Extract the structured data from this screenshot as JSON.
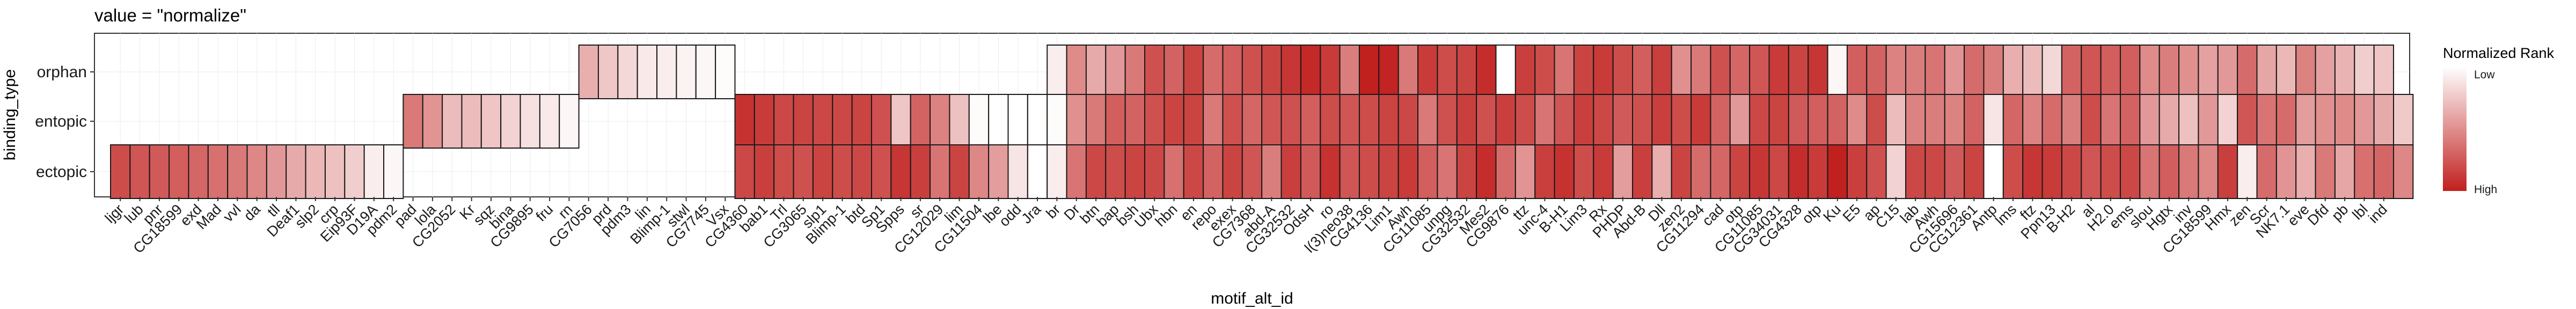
{
  "chart_data": {
    "type": "heatmap",
    "title": "value = \"normalize\"",
    "xlabel": "motif_alt_id",
    "ylabel": "binding_type",
    "rows": [
      "orphan",
      "entopic",
      "ectopic"
    ],
    "columns": [
      "ljgr",
      "lub",
      "pnr",
      "CG18599",
      "exd",
      "Mad",
      "vvl",
      "da",
      "tll",
      "Deaf1",
      "slp2",
      "crp",
      "Eip93F",
      "D19A",
      "pdm2",
      "pad",
      "lola",
      "CG2052",
      "Kr",
      "sqz",
      "bina",
      "CG9895",
      "fru",
      "rn",
      "CG7056",
      "prd",
      "pdm3",
      "lin",
      "Blimp-1",
      "stwl",
      "CG7745",
      "Vsx",
      "CG4360",
      "bab1",
      "Trl",
      "CG3065",
      "slp1",
      "Blimp-1",
      "btd",
      "Sp1",
      "Spps",
      "sr",
      "CG12029",
      "lim",
      "CG11504",
      "lbe",
      "odd",
      "Jra",
      "br",
      "Dr",
      "btn",
      "bap",
      "bsh",
      "Ubx",
      "hbn",
      "en",
      "repo",
      "exex",
      "CG7368",
      "abd-A",
      "CG32532",
      "OdsH",
      "ro",
      "l(3)neo38",
      "CG4136",
      "Lim1",
      "Awh",
      "CG11085",
      "unpg",
      "CG32532",
      "Mes2",
      "CG9876",
      "ttz",
      "unc-4",
      "B-H1",
      "Lim3",
      "Rx",
      "PHDP",
      "Abd-B",
      "Dll",
      "zen2",
      "CG11294",
      "cad",
      "otp",
      "CG11085",
      "CG34031",
      "CG4328",
      "otp",
      "Ku",
      "E5",
      "ap",
      "C15",
      "lab",
      "Awh",
      "CG15696",
      "CG12361",
      "Antp",
      "lms",
      "ftz",
      "Ppn13",
      "B-H2",
      "al",
      "H2.0",
      "ems",
      "slou",
      "Hgtx",
      "inv",
      "CG18599",
      "Hmx",
      "zen",
      "Scr",
      "NK7.1",
      "eve",
      "Dfd",
      "pb",
      "lbl",
      "ind"
    ],
    "values": [
      [
        null,
        null,
        null,
        null,
        null,
        null,
        null,
        null,
        null,
        null,
        null,
        null,
        null,
        null,
        null,
        null,
        null,
        null,
        null,
        null,
        null,
        null,
        null,
        null,
        0.36,
        0.25,
        0.18,
        0.1,
        0.08,
        0.06,
        0.04,
        0.02,
        null,
        null,
        null,
        null,
        null,
        null,
        null,
        null,
        null,
        null,
        null,
        null,
        null,
        null,
        null,
        null,
        0.08,
        0.52,
        0.38,
        0.46,
        0.6,
        0.78,
        0.7,
        0.84,
        0.66,
        0.72,
        0.78,
        0.84,
        0.9,
        0.96,
        0.88,
        0.58,
        1.0,
        0.98,
        0.6,
        0.88,
        0.8,
        0.84,
        0.94,
        0.0,
        0.86,
        0.8,
        0.62,
        0.84,
        0.88,
        0.8,
        0.72,
        0.86,
        0.5,
        0.6,
        0.78,
        0.68,
        0.76,
        0.88,
        0.84,
        0.9,
        0.04,
        0.72,
        0.7,
        0.56,
        0.58,
        0.62,
        0.48,
        0.66,
        0.58,
        0.36,
        0.3,
        0.18,
        0.7,
        0.76,
        0.72,
        0.72,
        0.52,
        0.58,
        0.5,
        0.42,
        0.46,
        0.66,
        0.4,
        0.32,
        0.56,
        0.42,
        0.34,
        0.22,
        0.26
      ],
      [
        null,
        null,
        null,
        null,
        null,
        null,
        null,
        null,
        null,
        null,
        null,
        null,
        null,
        null,
        null,
        0.6,
        0.48,
        0.3,
        0.3,
        0.26,
        0.2,
        0.14,
        0.1,
        0.04,
        null,
        null,
        null,
        null,
        null,
        null,
        null,
        null,
        0.92,
        0.88,
        0.82,
        0.84,
        0.82,
        0.82,
        0.84,
        0.78,
        0.26,
        0.7,
        0.56,
        0.28,
        0.02,
        0.0,
        0.0,
        0.0,
        0.02,
        0.5,
        0.6,
        0.72,
        0.7,
        0.78,
        0.84,
        0.84,
        0.6,
        0.78,
        0.68,
        0.76,
        0.78,
        0.72,
        0.8,
        0.76,
        0.8,
        0.84,
        0.82,
        0.6,
        0.78,
        0.86,
        0.78,
        0.86,
        0.8,
        0.62,
        0.76,
        0.86,
        0.82,
        0.74,
        0.78,
        0.86,
        0.8,
        0.88,
        0.7,
        0.46,
        0.82,
        0.84,
        0.74,
        0.72,
        0.7,
        0.52,
        0.8,
        0.3,
        0.56,
        0.58,
        0.56,
        0.7,
        0.12,
        0.68,
        0.56,
        0.66,
        0.58,
        0.8,
        0.62,
        0.7,
        0.46,
        0.38,
        0.28,
        0.46,
        0.2,
        0.76,
        0.62,
        0.66,
        0.44,
        0.5,
        0.52,
        0.46,
        0.38,
        0.24
      ],
      [
        0.8,
        0.76,
        0.74,
        0.72,
        0.68,
        0.64,
        0.6,
        0.54,
        0.46,
        0.38,
        0.32,
        0.28,
        0.22,
        0.08,
        0.04,
        null,
        null,
        null,
        null,
        null,
        null,
        null,
        null,
        null,
        null,
        null,
        null,
        null,
        null,
        null,
        null,
        null,
        0.82,
        0.86,
        0.8,
        0.78,
        0.84,
        0.8,
        0.82,
        0.78,
        0.9,
        0.86,
        0.62,
        0.84,
        0.54,
        0.44,
        0.12,
        0.0,
        0.08,
        0.62,
        0.82,
        0.8,
        0.84,
        0.82,
        0.64,
        0.82,
        0.7,
        0.84,
        0.76,
        0.58,
        0.86,
        0.74,
        0.92,
        0.76,
        0.8,
        0.84,
        0.88,
        0.72,
        0.62,
        0.84,
        0.94,
        0.66,
        0.48,
        0.86,
        0.92,
        0.8,
        0.88,
        0.44,
        0.86,
        0.36,
        0.84,
        0.66,
        0.68,
        0.84,
        0.9,
        0.82,
        0.94,
        0.88,
        1.0,
        0.86,
        0.78,
        0.2,
        0.82,
        0.82,
        0.74,
        0.84,
        0.0,
        0.8,
        0.9,
        0.88,
        0.82,
        0.76,
        0.8,
        0.82,
        0.62,
        0.72,
        0.6,
        0.54,
        0.86,
        0.08,
        0.66,
        0.48,
        0.36,
        0.6,
        0.4,
        0.64,
        0.68,
        0.54
      ]
    ],
    "legend": {
      "title": "Normalized Rank",
      "labels": [
        "Low",
        "High"
      ],
      "placement": "right",
      "low_color": "#ffffff",
      "high_color": "#c0201e"
    },
    "grid": true
  }
}
